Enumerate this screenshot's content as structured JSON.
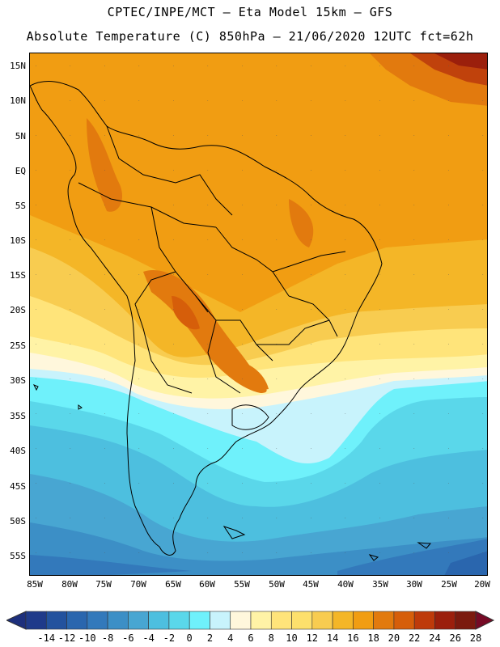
{
  "header": {
    "line1": "CPTEC/INPE/MCT  –   Eta Model 15km – GFS",
    "line2": "Absolute Temperature (C) 850hPa – 21/06/2020 12UTC fct=62h"
  },
  "map": {
    "lat_labels": [
      "15N",
      "10N",
      "5N",
      "EQ",
      "5S",
      "10S",
      "15S",
      "20S",
      "25S",
      "30S",
      "35S",
      "40S",
      "45S",
      "50S",
      "55S"
    ],
    "lon_labels": [
      "85W",
      "80W",
      "75W",
      "70W",
      "65W",
      "60W",
      "55W",
      "50W",
      "45W",
      "40W",
      "35W",
      "30W",
      "25W",
      "20W"
    ]
  },
  "colorbar": {
    "labels": [
      "-14",
      "-12",
      "-10",
      "-8",
      "-6",
      "-4",
      "-2",
      "0",
      "2",
      "4",
      "6",
      "8",
      "10",
      "12",
      "14",
      "16",
      "18",
      "20",
      "22",
      "24",
      "26",
      "28"
    ],
    "colors": [
      "#1f3a8a",
      "#23529e",
      "#2a66ae",
      "#3379bb",
      "#3c8fc6",
      "#48a6d2",
      "#4dbfdf",
      "#5ad7ea",
      "#6ff1fb",
      "#c8f3fc",
      "#fff7dc",
      "#fff3a6",
      "#ffe47a",
      "#fde06c",
      "#f8cc50",
      "#f4b627",
      "#f19d12",
      "#e27a0e",
      "#d65e0a",
      "#be3a0a",
      "#9b1f0c",
      "#7b1a0e"
    ],
    "low_end_color": "#1d2f7c",
    "high_end_color": "#760a25"
  }
}
